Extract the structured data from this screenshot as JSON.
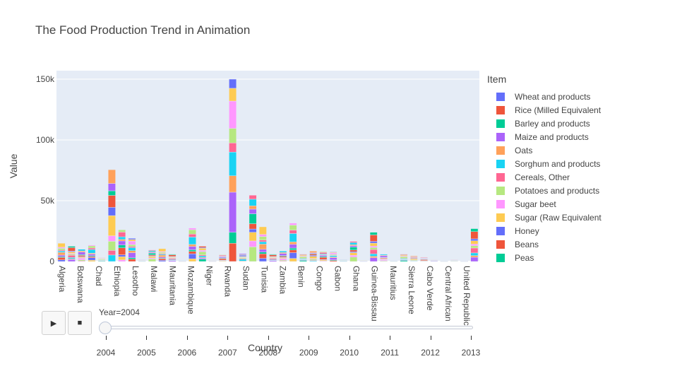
{
  "title": "The Food Production Trend in Animation",
  "legend": {
    "title": "Item",
    "items": [
      {
        "label": "Wheat and products",
        "color": "#636efa"
      },
      {
        "label": "Rice (Milled Equivalent",
        "color": "#ef553b"
      },
      {
        "label": "Barley and products",
        "color": "#00cc96"
      },
      {
        "label": "Maize and products",
        "color": "#ab63fa"
      },
      {
        "label": "Oats",
        "color": "#ffa15a"
      },
      {
        "label": "Sorghum and products",
        "color": "#19d3f3"
      },
      {
        "label": "Cereals, Other",
        "color": "#ff6692"
      },
      {
        "label": "Potatoes and products",
        "color": "#b6e880"
      },
      {
        "label": "Sugar beet",
        "color": "#ff97ff"
      },
      {
        "label": "Sugar (Raw Equivalent",
        "color": "#fecb52"
      },
      {
        "label": "Honey",
        "color": "#636efa"
      },
      {
        "label": "Beans",
        "color": "#ef553b"
      },
      {
        "label": "Peas",
        "color": "#00cc96"
      }
    ]
  },
  "controls": {
    "play_icon": "▶",
    "stop_icon": "■",
    "slider_label": "Year=2004",
    "years": [
      "2004",
      "2005",
      "2006",
      "2007",
      "2008",
      "2009",
      "2010",
      "2011",
      "2012",
      "2013"
    ]
  },
  "chart_data": {
    "type": "bar",
    "barmode": "stack",
    "xlabel": "Country",
    "ylabel": "Value",
    "ylim": [
      0,
      157000
    ],
    "yticks": [
      0,
      50000,
      100000,
      150000
    ],
    "ytick_labels": [
      "0",
      "50k",
      "100k",
      "150k"
    ],
    "tick_categories": [
      "Algeria",
      "Botswana",
      "Chad",
      "Ethiopia",
      "Lesotho",
      "Malawi",
      "Mauritania",
      "Mozambique",
      "Niger",
      "Rwanda",
      "Sudan",
      "Tunisia",
      "Zambia",
      "Benin",
      "Congo",
      "Gabon",
      "Ghana",
      "Guinea-Bissau",
      "Mauritius",
      "Sierra Leone",
      "Cabo Verde",
      "Central African",
      "United Republic"
    ],
    "palette": [
      "#636efa",
      "#ef553b",
      "#00cc96",
      "#ab63fa",
      "#ffa15a",
      "#19d3f3",
      "#ff6692",
      "#b6e880",
      "#ff97ff",
      "#fecb52"
    ],
    "bars": [
      {
        "x": 0,
        "total": 15000
      },
      {
        "x": 1,
        "total": 12500
      },
      {
        "x": 2,
        "total": 10000
      },
      {
        "x": 3,
        "total": 13500
      },
      {
        "x": 4,
        "total": 3000
      },
      {
        "x": 5,
        "total": 75500
      },
      {
        "x": 6,
        "total": 26000
      },
      {
        "x": 7,
        "total": 19000
      },
      {
        "x": 8,
        "total": 1500
      },
      {
        "x": 9,
        "total": 9500
      },
      {
        "x": 10,
        "total": 10500
      },
      {
        "x": 11,
        "total": 6000
      },
      {
        "x": 12,
        "total": 1000
      },
      {
        "x": 13,
        "total": 27500
      },
      {
        "x": 14,
        "total": 12500
      },
      {
        "x": 15,
        "total": 1000
      },
      {
        "x": 16,
        "total": 5500
      },
      {
        "x": 17,
        "total": 150000
      },
      {
        "x": 18,
        "total": 6500
      },
      {
        "x": 19,
        "total": 54500
      },
      {
        "x": 20,
        "total": 28500
      },
      {
        "x": 21,
        "total": 6000
      },
      {
        "x": 22,
        "total": 8500
      },
      {
        "x": 23,
        "total": 31500
      },
      {
        "x": 24,
        "total": 6000
      },
      {
        "x": 25,
        "total": 8500
      },
      {
        "x": 26,
        "total": 8000
      },
      {
        "x": 27,
        "total": 8000
      },
      {
        "x": 28,
        "total": 2000
      },
      {
        "x": 29,
        "total": 16500
      },
      {
        "x": 30,
        "total": 1000
      },
      {
        "x": 31,
        "total": 24000
      },
      {
        "x": 32,
        "total": 6000
      },
      {
        "x": 33,
        "total": 1000
      },
      {
        "x": 34,
        "total": 6000
      },
      {
        "x": 35,
        "total": 4500
      },
      {
        "x": 36,
        "total": 3500
      },
      {
        "x": 37,
        "total": 2000
      },
      {
        "x": 38,
        "total": 500
      },
      {
        "x": 39,
        "total": 1500
      },
      {
        "x": 40,
        "total": 500
      },
      {
        "x": 41,
        "total": 27000
      }
    ]
  }
}
